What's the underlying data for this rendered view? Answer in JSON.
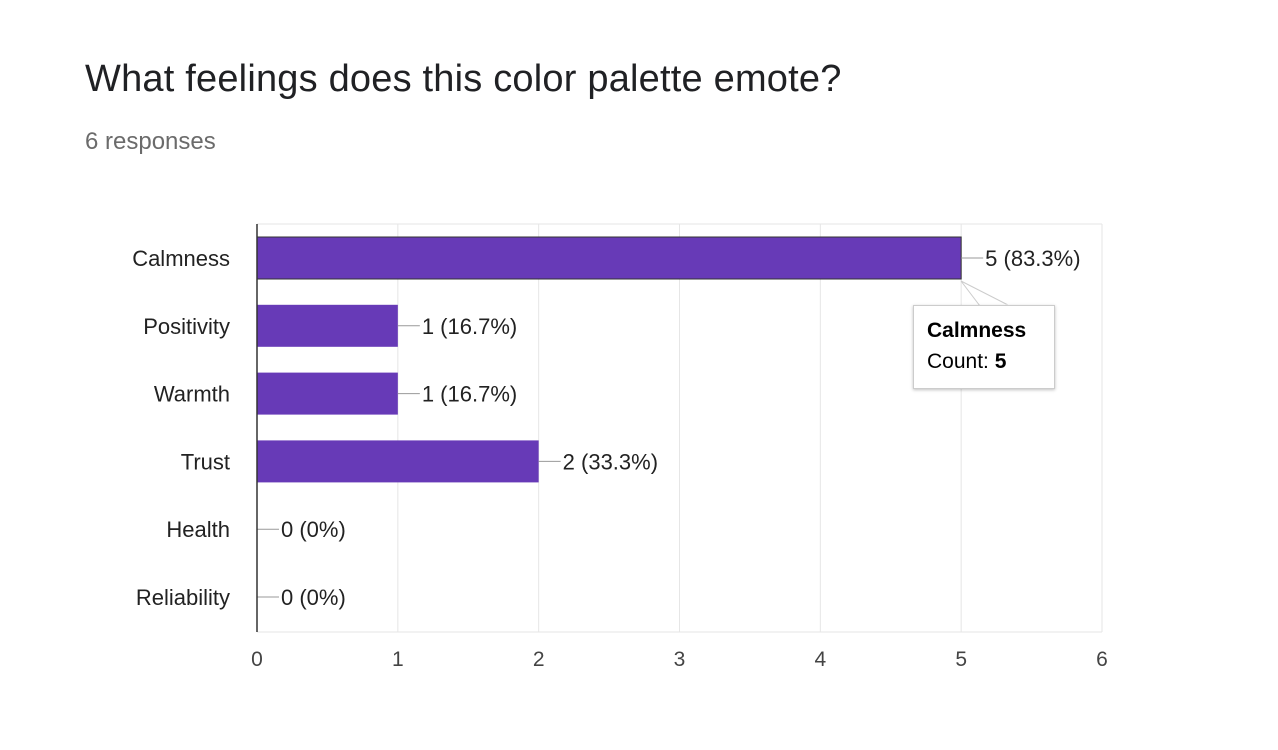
{
  "header": {
    "title": "What feelings does this color palette emote?",
    "subtitle": "6 responses"
  },
  "chart_data": {
    "type": "bar",
    "orientation": "horizontal",
    "categories": [
      "Calmness",
      "Positivity",
      "Warmth",
      "Trust",
      "Health",
      "Reliability"
    ],
    "values": [
      5,
      1,
      1,
      2,
      0,
      0
    ],
    "data_labels": [
      "5 (83.3%)",
      "1 (16.7%)",
      "1 (16.7%)",
      "2 (33.3%)",
      "0 (0%)",
      "0 (0%)"
    ],
    "xlim": [
      0,
      6
    ],
    "xticks": [
      "0",
      "1",
      "2",
      "3",
      "4",
      "5",
      "6"
    ],
    "grid": true,
    "bar_color": "#673ab7",
    "highlighted_category": "Calmness"
  },
  "tooltip": {
    "title": "Calmness",
    "count_label": "Count:",
    "count_value": "5"
  }
}
